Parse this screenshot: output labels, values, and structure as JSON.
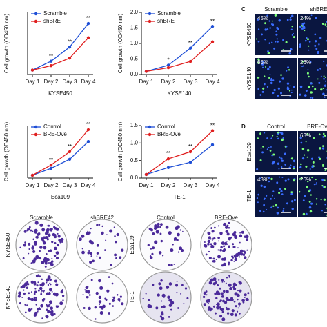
{
  "chart_data": [
    {
      "type": "line",
      "title": "KYSE450",
      "ylabel": "Cell growth (OD450 nm)",
      "categories": [
        "Day 1",
        "Day 2",
        "Day 3",
        "Day 4"
      ],
      "ylim": [
        0,
        1.4
      ],
      "series": [
        {
          "name": "Scramble",
          "color": "#1f4fd6",
          "values": [
            0.1,
            0.3,
            0.62,
            1.15
          ]
        },
        {
          "name": "shBRE",
          "color": "#e02020",
          "values": [
            0.1,
            0.2,
            0.37,
            0.83
          ]
        }
      ],
      "annotations": [
        "**",
        "**",
        "**"
      ]
    },
    {
      "type": "line",
      "title": "KYSE140",
      "ylabel": "Cell growth (OD450 nm)",
      "categories": [
        "Day 1",
        "Day 2",
        "Day 3",
        "Day 4"
      ],
      "ylim": [
        0,
        2.0
      ],
      "yticks": [
        {
          "value": 0,
          "label": "0.0"
        },
        0.5,
        {
          "value": 1,
          "label": "1.0"
        },
        1.5,
        {
          "value": 2,
          "label": "2.0"
        }
      ],
      "series": [
        {
          "name": "Scramble",
          "color": "#1f4fd6",
          "values": [
            0.1,
            0.3,
            0.85,
            1.55
          ]
        },
        {
          "name": "shBRE",
          "color": "#e02020",
          "values": [
            0.1,
            0.22,
            0.42,
            1.05
          ]
        }
      ],
      "annotations": [
        "*",
        "**",
        "**"
      ]
    },
    {
      "type": "line",
      "title": "Eca109",
      "ylabel": "Cell growth (OD450 nm)",
      "categories": [
        "Day 1",
        "Day 2",
        "Day 3",
        "Day 4"
      ],
      "ylim": [
        0,
        1.9
      ],
      "series": [
        {
          "name": "Control",
          "color": "#1f4fd6",
          "values": [
            0.1,
            0.35,
            0.68,
            1.32
          ]
        },
        {
          "name": "BRE-Ove",
          "color": "#e02020",
          "values": [
            0.1,
            0.47,
            0.95,
            1.75
          ]
        }
      ],
      "annotations": [
        "**",
        "**",
        "**"
      ]
    },
    {
      "type": "line",
      "title": "TE-1",
      "ylabel": "Cell growth (OD450 nm)",
      "categories": [
        "Day 1",
        "Day 2",
        "Day 3",
        "Day 4"
      ],
      "ylim": [
        0,
        1.5
      ],
      "yticks": [
        {
          "value": 0,
          "label": "0.0"
        },
        0.5,
        {
          "value": 1,
          "label": "1.0"
        },
        1.5
      ],
      "series": [
        {
          "name": "Control",
          "color": "#1f4fd6",
          "values": [
            0.1,
            0.3,
            0.45,
            0.95
          ]
        },
        {
          "name": "BRE-Ove",
          "color": "#e02020",
          "values": [
            0.1,
            0.55,
            0.75,
            1.35
          ]
        }
      ],
      "annotations": [
        "**",
        "**",
        "**"
      ]
    }
  ],
  "panel_c": {
    "letter": "C",
    "columns": [
      "Scramble",
      "shBRE"
    ],
    "rows": [
      "KYSE450",
      "KYSE140"
    ],
    "percents": [
      [
        "45%",
        "24%"
      ],
      [
        "65%",
        "26%"
      ]
    ]
  },
  "panel_d": {
    "letter": "D",
    "columns": [
      "Control",
      "BRE-Ove"
    ],
    "rows": [
      "Eca109",
      "TE-1"
    ],
    "percents": [
      [
        "",
        "63%"
      ],
      [
        "43%",
        "26%"
      ]
    ]
  },
  "colony": {
    "left_columns": [
      "Scramble",
      "shBRE42"
    ],
    "left_rows": [
      "KYSE450",
      "KYSE140"
    ],
    "right_columns": [
      "Control",
      "BRE-Ove"
    ],
    "right_rows": [
      "Eca109",
      "TE-1"
    ]
  }
}
